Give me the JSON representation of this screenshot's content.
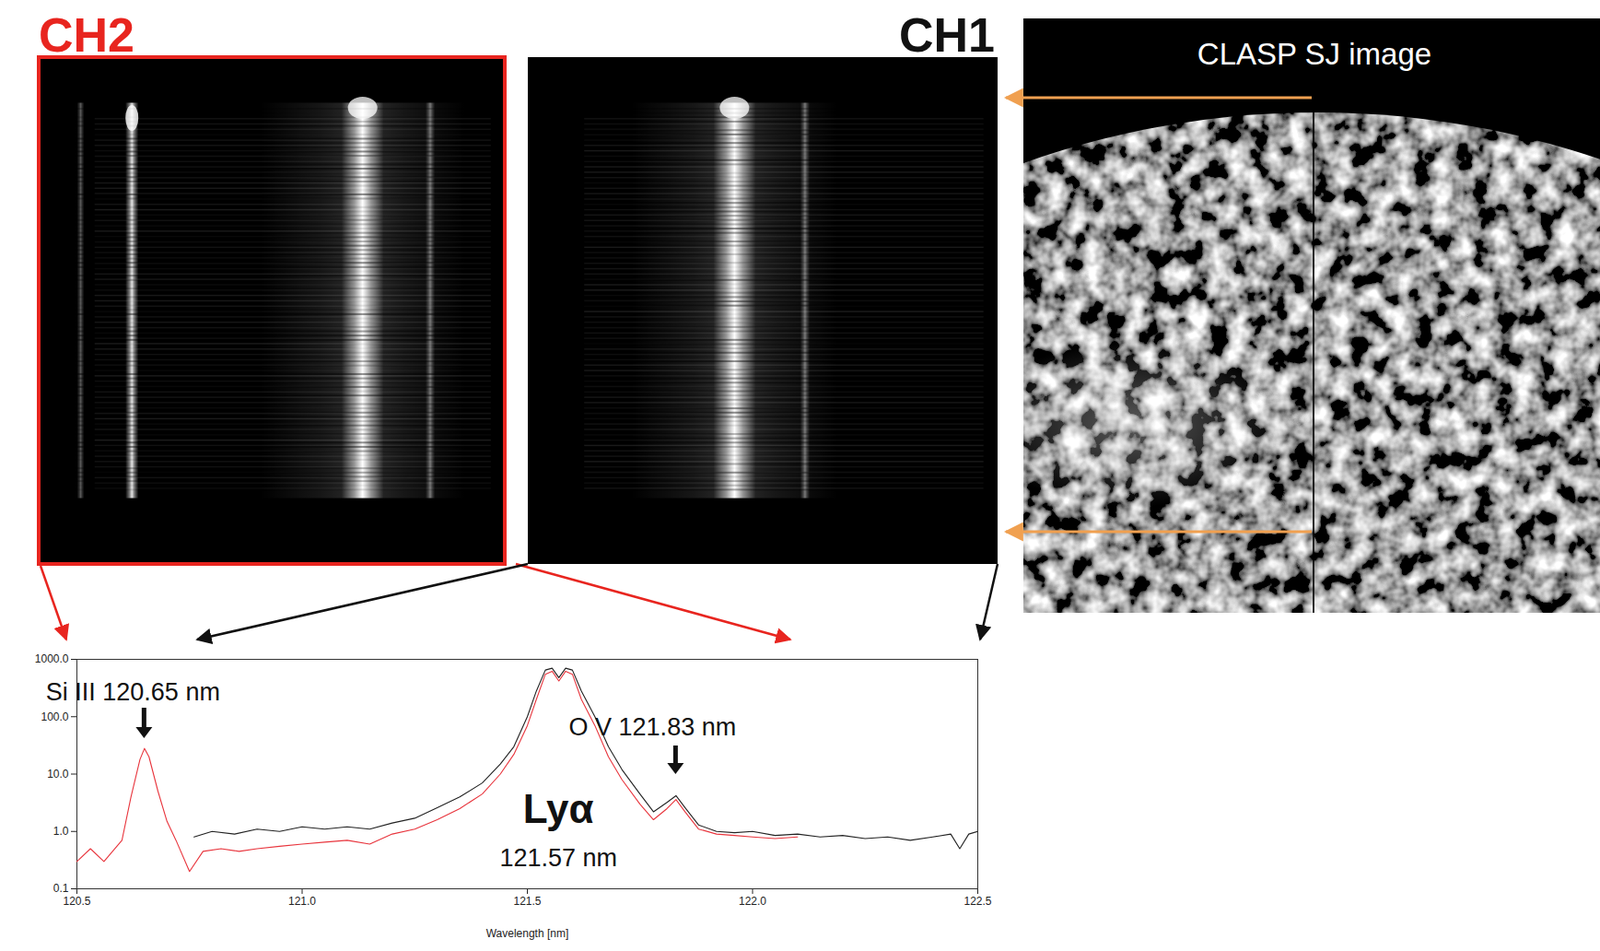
{
  "chart_data": {
    "type": "line",
    "x_label": "Wavelength [nm]",
    "xlim": [
      120.5,
      122.5
    ],
    "xticks": [
      120.5,
      {
        "value": 121,
        "label": "121.0"
      },
      121.5,
      {
        "value": 122,
        "label": "122.0"
      },
      122.5
    ],
    "ylim": [
      0.1,
      1000
    ],
    "yticks": [
      0.1,
      {
        "value": 1,
        "label": "1.0"
      },
      {
        "value": 10,
        "label": "10.0"
      },
      {
        "value": 100,
        "label": "100.0"
      },
      {
        "value": 1000,
        "label": "1000.0"
      }
    ],
    "log": "y",
    "grid": false,
    "series": [
      {
        "name": "CH2",
        "color": "#e8343c",
        "x": [
          120.5,
          120.53,
          120.56,
          120.6,
          120.62,
          120.64,
          120.65,
          120.66,
          120.68,
          120.7,
          120.72,
          120.75,
          120.78,
          120.82,
          120.86,
          120.9,
          120.95,
          121.0,
          121.05,
          121.1,
          121.15,
          121.2,
          121.25,
          121.3,
          121.35,
          121.4,
          121.44,
          121.47,
          121.5,
          121.52,
          121.54,
          121.555,
          121.57,
          121.585,
          121.6,
          121.62,
          121.65,
          121.68,
          121.71,
          121.75,
          121.78,
          121.81,
          121.83,
          121.85,
          121.88,
          121.92,
          121.96,
          122.0,
          122.05,
          122.1
        ],
        "values": [
          0.3,
          0.5,
          0.3,
          0.7,
          4,
          18,
          28,
          20,
          5,
          1.5,
          0.7,
          0.2,
          0.45,
          0.5,
          0.45,
          0.5,
          0.55,
          0.6,
          0.65,
          0.7,
          0.6,
          0.9,
          1.1,
          1.6,
          2.5,
          4.5,
          10,
          22,
          70,
          200,
          550,
          620,
          420,
          620,
          550,
          200,
          70,
          20,
          8,
          3,
          1.6,
          2.5,
          3.6,
          2.2,
          1.1,
          0.9,
          0.85,
          0.8,
          0.75,
          0.8
        ]
      },
      {
        "name": "CH1",
        "color": "#222222",
        "x": [
          120.76,
          120.8,
          120.85,
          120.9,
          120.95,
          121.0,
          121.05,
          121.1,
          121.15,
          121.2,
          121.25,
          121.3,
          121.35,
          121.4,
          121.44,
          121.47,
          121.5,
          121.52,
          121.54,
          121.555,
          121.57,
          121.585,
          121.6,
          121.62,
          121.65,
          121.68,
          121.71,
          121.75,
          121.78,
          121.81,
          121.83,
          121.85,
          121.88,
          121.92,
          121.96,
          122.0,
          122.05,
          122.1,
          122.15,
          122.2,
          122.25,
          122.3,
          122.35,
          122.4,
          122.44,
          122.46,
          122.48,
          122.5
        ],
        "values": [
          0.8,
          1.0,
          0.9,
          1.1,
          1.0,
          1.2,
          1.1,
          1.2,
          1.1,
          1.4,
          1.7,
          2.6,
          4,
          7,
          15,
          30,
          100,
          280,
          650,
          700,
          480,
          700,
          650,
          280,
          100,
          30,
          12,
          4.5,
          2.2,
          3.2,
          4.2,
          2.6,
          1.3,
          1.0,
          0.95,
          1.0,
          0.85,
          0.9,
          0.8,
          0.85,
          0.75,
          0.8,
          0.7,
          0.8,
          0.9,
          0.5,
          0.9,
          1.0
        ]
      }
    ],
    "annotations": [
      {
        "label": "Si III 120.65 nm",
        "x": 120.65
      },
      {
        "label": "O V 121.83 nm",
        "x": 121.83
      }
    ],
    "peak_label": {
      "label": "Lyα",
      "sublabel": "121.57 nm",
      "x": 121.57
    }
  },
  "figure": {
    "panels": [
      {
        "label": "CH2",
        "color": "#e8251f"
      },
      {
        "label": "CH1",
        "color": "#111111"
      }
    ],
    "image_label": "CLASP SJ image"
  }
}
